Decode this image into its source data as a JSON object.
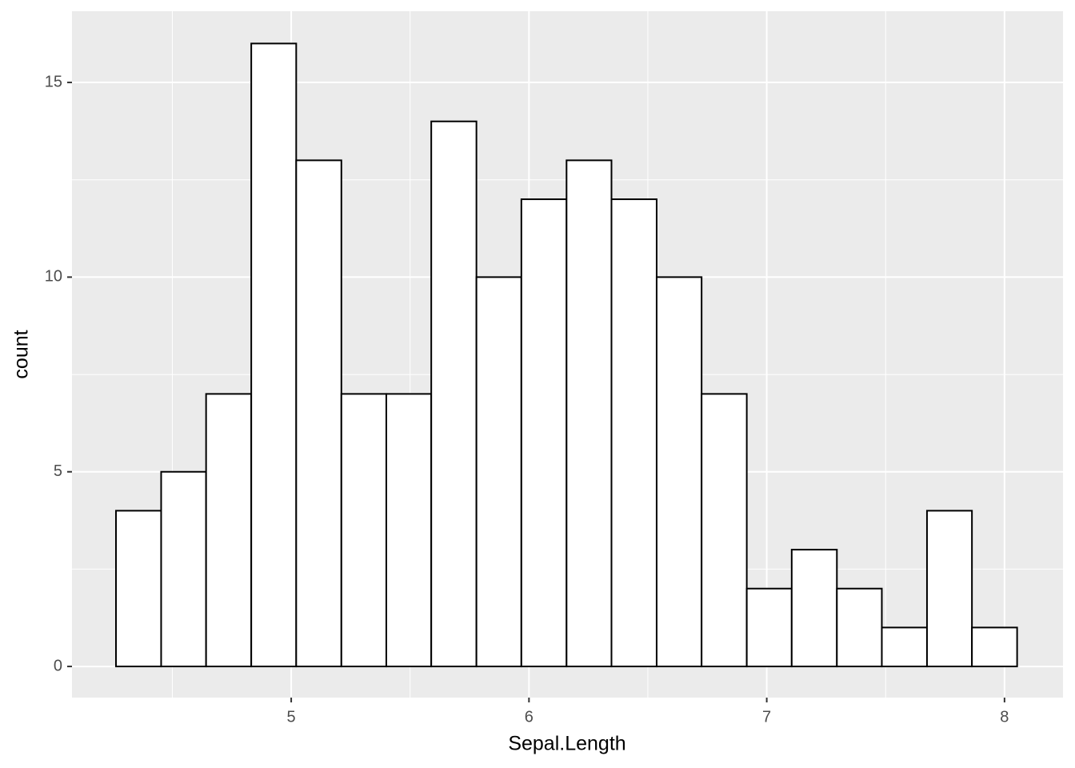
{
  "chart_data": {
    "type": "histogram",
    "x_label": "Sepal.Length",
    "y_label": "count",
    "bins": [
      4.263,
      4.453,
      4.642,
      4.832,
      5.021,
      5.211,
      5.4,
      5.589,
      5.779,
      5.968,
      6.158,
      6.347,
      6.537,
      6.726,
      6.916,
      7.105,
      7.295,
      7.484,
      7.674,
      7.863,
      8.053
    ],
    "values": [
      4,
      5,
      7,
      16,
      13,
      7,
      7,
      14,
      10,
      12,
      13,
      12,
      10,
      7,
      2,
      3,
      2,
      1,
      4,
      1
    ],
    "color": "#ffffff",
    "edge_color": "#000000",
    "xlim": [
      4.078,
      8.246
    ],
    "xticks": [
      5,
      6,
      7,
      8
    ],
    "xminor": [
      4.5,
      5.5,
      6.5,
      7.5
    ],
    "ylim": [
      -0.8,
      16.83
    ],
    "yticks": [
      0,
      5,
      10,
      15
    ],
    "yminor": [
      2.5,
      7.5,
      12.5
    ],
    "grid": true
  }
}
